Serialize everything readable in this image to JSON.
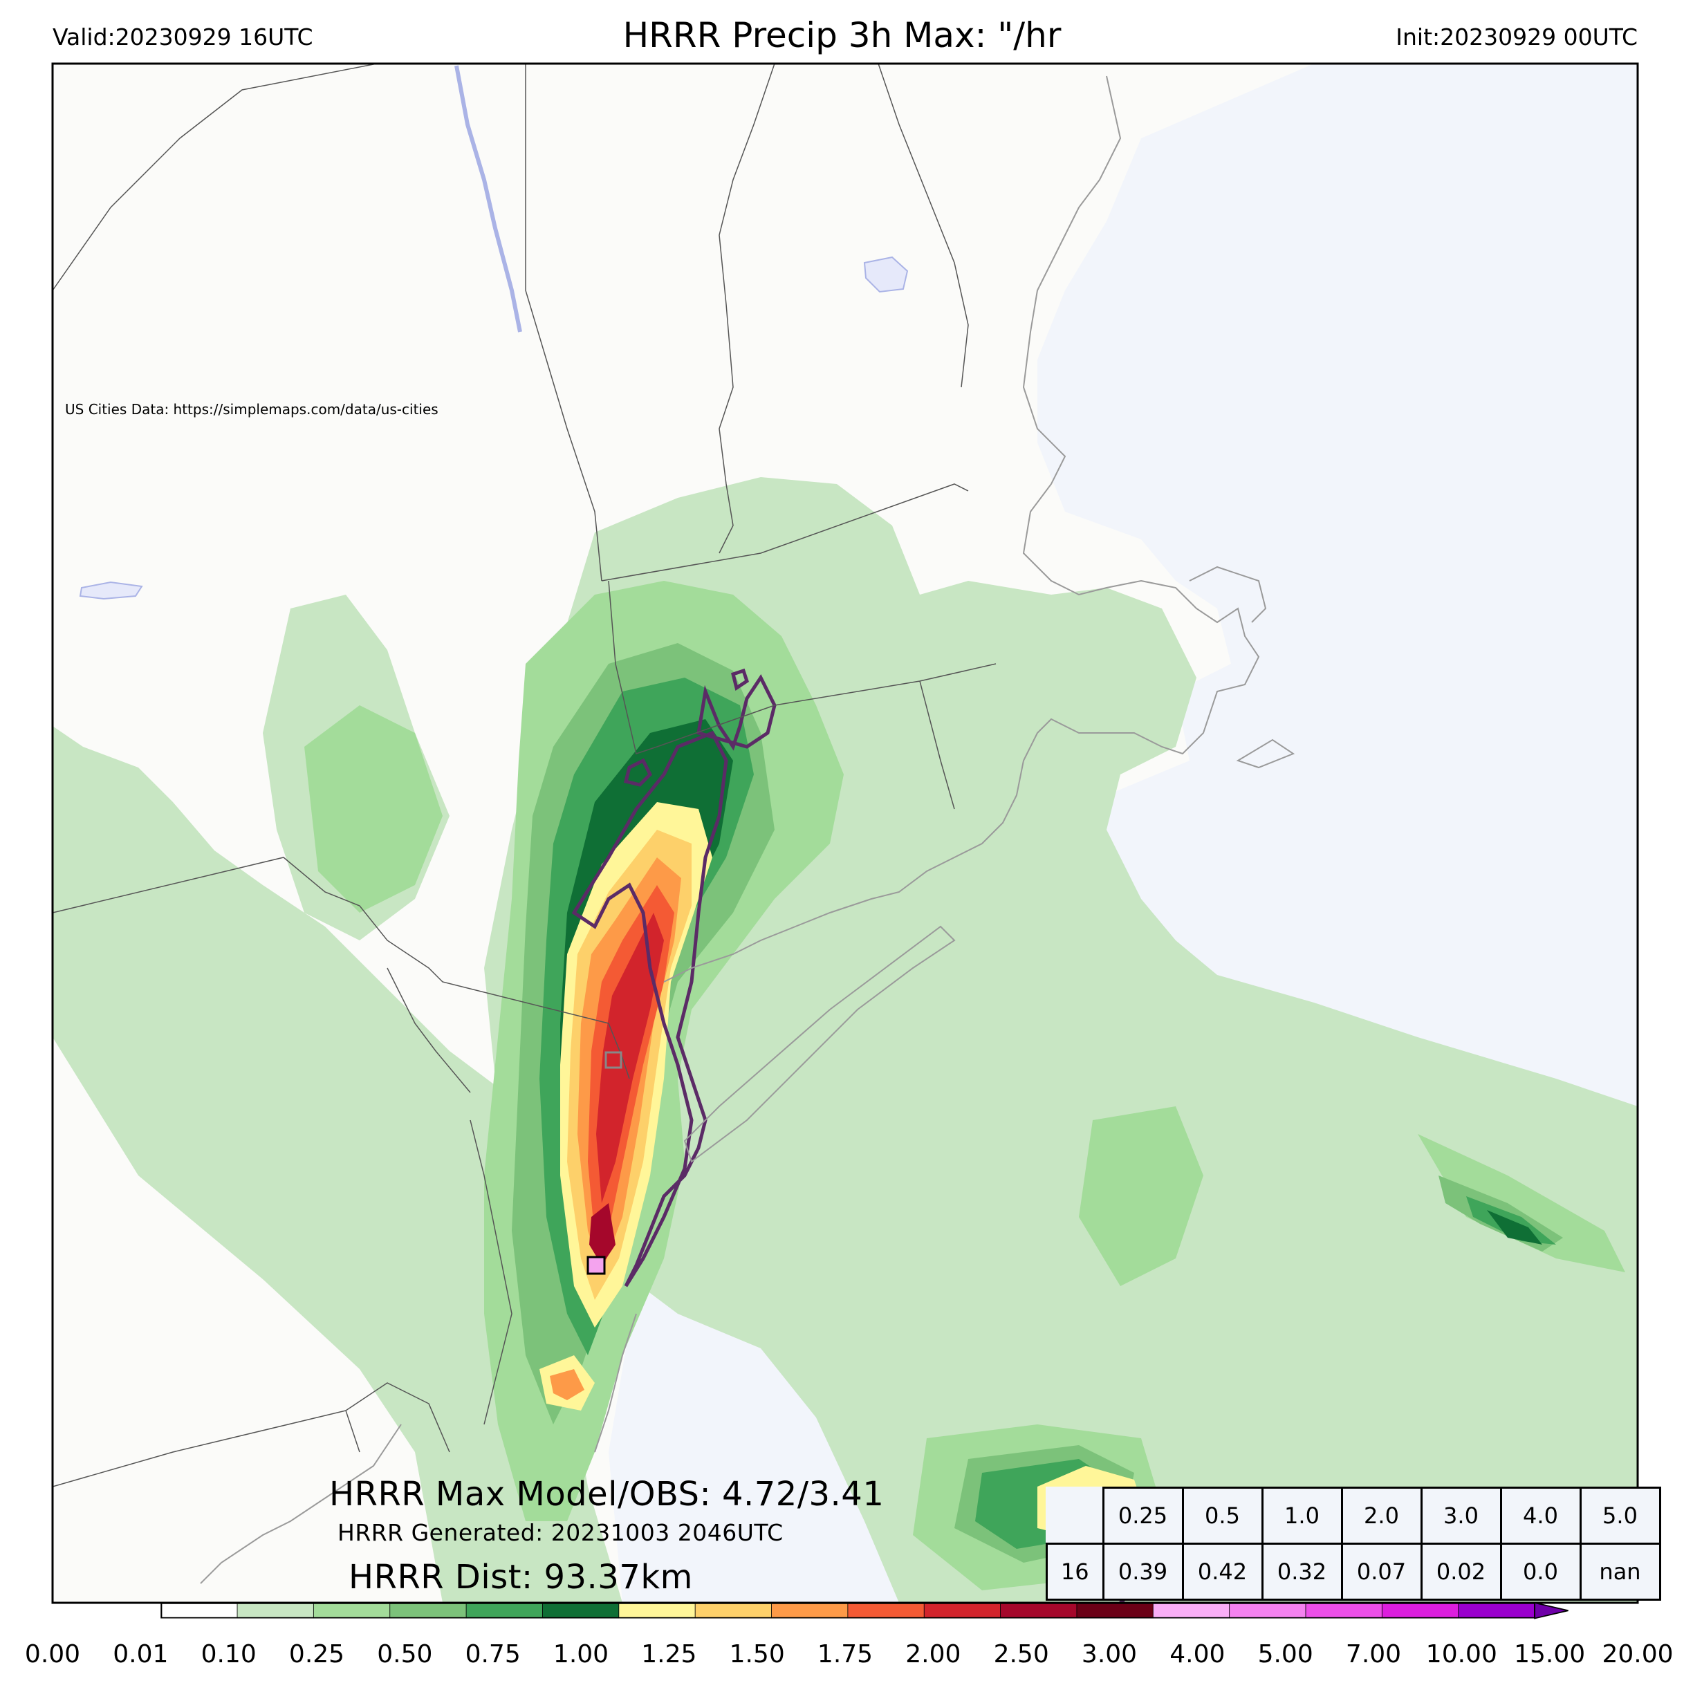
{
  "header": {
    "valid": "Valid:20230929 16UTC",
    "title": "HRRR Precip 3h Max: \"/hr",
    "init": "Init:20230929 00UTC"
  },
  "map": {
    "credit": "US Cities Data: https://simplemaps.com/data/us-cities",
    "land_color": "#fbfbf9",
    "water_color": "#f2f5fb"
  },
  "annotations": {
    "max_model_obs": "HRRR Max Model/OBS: 4.72/3.41",
    "generated": "HRRR Generated: 20231003 2046UTC",
    "distance": "HRRR Dist: 93.37km"
  },
  "threshold_table": {
    "thresholds": [
      "0.25",
      "0.5",
      "1.0",
      "2.0",
      "3.0",
      "4.0",
      "5.0"
    ],
    "row_label": "16",
    "values": [
      "0.39",
      "0.42",
      "0.32",
      "0.07",
      "0.02",
      "0.0",
      "nan"
    ]
  },
  "colorbar": {
    "ticks": [
      "0.00",
      "0.01",
      "0.10",
      "0.25",
      "0.50",
      "0.75",
      "1.00",
      "1.25",
      "1.50",
      "1.75",
      "2.00",
      "2.50",
      "3.00",
      "4.00",
      "5.00",
      "7.00",
      "10.00",
      "15.00",
      "20.00"
    ],
    "colors": [
      "#ffffff",
      "#c8e6c3",
      "#a3dc9a",
      "#7cc27a",
      "#3fa55a",
      "#0f6f35",
      "#fff699",
      "#fdd06a",
      "#fd9a48",
      "#f45a34",
      "#d2242c",
      "#a5072b",
      "#6b0016",
      "#f9aef6",
      "#f482ef",
      "#ec4fe8",
      "#dc1fde",
      "#9a00cd"
    ],
    "extend_color": "#6f00a8"
  }
}
